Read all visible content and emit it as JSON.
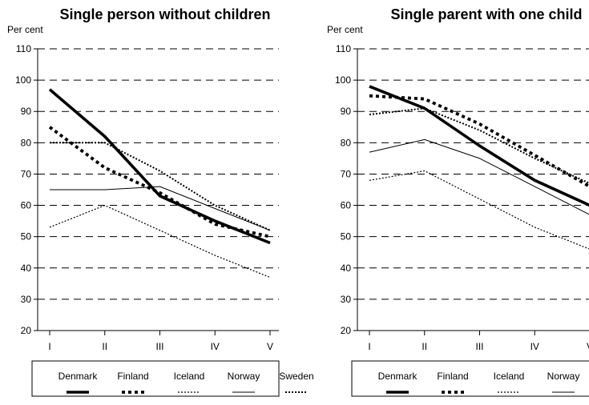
{
  "chart_data": [
    {
      "type": "line",
      "title": "Single person without children",
      "ylabel": "Per cent",
      "xlabel": "",
      "categories": [
        "I",
        "II",
        "III",
        "IV",
        "V"
      ],
      "ylim": [
        20,
        110
      ],
      "yticks": [
        20,
        30,
        40,
        50,
        60,
        70,
        80,
        90,
        100,
        110
      ],
      "grid": "horizontal dashed",
      "legend_position": "bottom",
      "series": [
        {
          "name": "Denmark",
          "values": [
            97,
            82,
            63,
            55,
            48
          ]
        },
        {
          "name": "Finland",
          "values": [
            85,
            72,
            64,
            54,
            50
          ]
        },
        {
          "name": "Iceland",
          "values": [
            53,
            60,
            52,
            44,
            37
          ]
        },
        {
          "name": "Norway",
          "values": [
            65,
            65,
            66,
            59,
            52
          ]
        },
        {
          "name": "Sweden",
          "values": [
            80,
            80,
            71,
            60,
            52
          ]
        }
      ]
    },
    {
      "type": "line",
      "title": "Single parent with one child",
      "ylabel": "Per cent",
      "xlabel": "",
      "categories": [
        "I",
        "II",
        "III",
        "IV",
        "V"
      ],
      "ylim": [
        20,
        110
      ],
      "yticks": [
        20,
        30,
        40,
        50,
        60,
        70,
        80,
        90,
        100,
        110
      ],
      "grid": "horizontal dashed",
      "legend_position": "bottom",
      "series": [
        {
          "name": "Denmark",
          "values": [
            98,
            91,
            79,
            68,
            60
          ]
        },
        {
          "name": "Finland",
          "values": [
            95,
            94,
            86,
            76,
            66
          ]
        },
        {
          "name": "Iceland",
          "values": [
            68,
            71,
            62,
            53,
            46
          ]
        },
        {
          "name": "Norway",
          "values": [
            77,
            81,
            75,
            66,
            57
          ]
        },
        {
          "name": "Sweden",
          "values": [
            89,
            91,
            84,
            75,
            67
          ]
        }
      ]
    }
  ],
  "series_styles": {
    "Denmark": {
      "color": "#000000",
      "style": "thick-solid"
    },
    "Finland": {
      "color": "#000000",
      "style": "thick-dashed"
    },
    "Iceland": {
      "color": "#000000",
      "style": "thin-dotted"
    },
    "Norway": {
      "color": "#000000",
      "style": "thin-solid"
    },
    "Sweden": {
      "color": "#000000",
      "style": "medium-dotted"
    }
  }
}
